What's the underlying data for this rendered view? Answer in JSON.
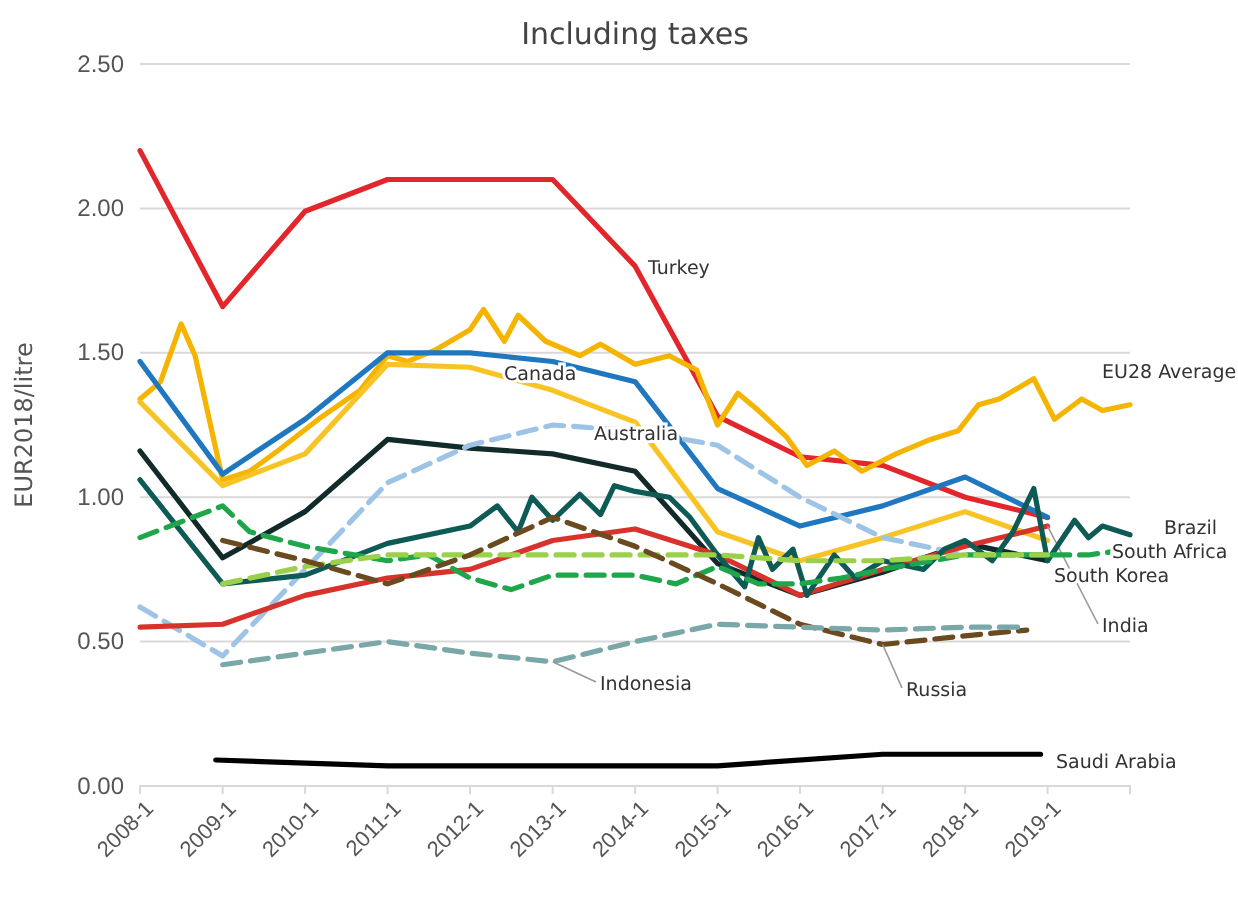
{
  "chart_data": {
    "type": "line",
    "title": "Including taxes",
    "ylabel": "EUR2018/litre",
    "xlim": [
      "2008-01",
      "2020-01"
    ],
    "xticks": [
      {
        "value": "2008-01",
        "label": "2008-1"
      },
      {
        "value": "2009-01",
        "label": "2009-1"
      },
      {
        "value": "2010-01",
        "label": "2010-1"
      },
      {
        "value": "2011-01",
        "label": "2011-1"
      },
      {
        "value": "2012-01",
        "label": "2012-1"
      },
      {
        "value": "2013-01",
        "label": "2013-1"
      },
      {
        "value": "2014-01",
        "label": "2014-1"
      },
      {
        "value": "2015-01",
        "label": "2015-1"
      },
      {
        "value": "2016-01",
        "label": "2016-1"
      },
      {
        "value": "2017-01",
        "label": "2017-1"
      },
      {
        "value": "2018-01",
        "label": "2018-1"
      },
      {
        "value": "2019-01",
        "label": "2019-1"
      }
    ],
    "ylim": [
      0,
      2.5
    ],
    "yticks": [
      {
        "value": 0,
        "label": "0.00"
      },
      {
        "value": 0.5,
        "label": "0.50"
      },
      {
        "value": 1,
        "label": "1.00"
      },
      {
        "value": 1.5,
        "label": "1.50"
      },
      {
        "value": 2,
        "label": "2.00"
      },
      {
        "value": 2.5,
        "label": "2.50"
      }
    ],
    "grid": "y",
    "legend": false,
    "marker": "none",
    "series": [
      {
        "name": "Turkey",
        "color": "#e3262b",
        "line_style": "solid",
        "x": [
          "2008-01",
          "2009-01",
          "2010-01",
          "2011-01",
          "2013-01",
          "2014-01",
          "2015-01",
          "2016-01",
          "2017-01",
          "2018-01",
          "2019-01"
        ],
        "values": [
          2.2,
          1.66,
          1.99,
          2.1,
          2.1,
          1.8,
          1.28,
          1.14,
          1.11,
          1.0,
          0.93
        ]
      },
      {
        "name": "EU28 Average",
        "color": "#f5b400",
        "line_style": "solid",
        "x": [
          "2008-01",
          "2008-04",
          "2008-07",
          "2008-09",
          "2009-01",
          "2009-05",
          "2009-09",
          "2010-03",
          "2010-09",
          "2011-01",
          "2011-04",
          "2011-08",
          "2012-01",
          "2012-03",
          "2012-06",
          "2012-08",
          "2012-12",
          "2013-05",
          "2013-08",
          "2014-01",
          "2014-06",
          "2014-10",
          "2015-01",
          "2015-04",
          "2015-07",
          "2015-11",
          "2016-02",
          "2016-06",
          "2016-10",
          "2017-03",
          "2017-08",
          "2017-12",
          "2018-03",
          "2018-06",
          "2018-11",
          "2019-02",
          "2019-06",
          "2019-09",
          "2020-01"
        ],
        "values": [
          1.34,
          1.4,
          1.6,
          1.49,
          1.06,
          1.09,
          1.16,
          1.27,
          1.37,
          1.49,
          1.47,
          1.51,
          1.58,
          1.65,
          1.54,
          1.63,
          1.54,
          1.49,
          1.53,
          1.46,
          1.49,
          1.44,
          1.25,
          1.36,
          1.3,
          1.21,
          1.11,
          1.16,
          1.09,
          1.15,
          1.2,
          1.23,
          1.32,
          1.34,
          1.41,
          1.27,
          1.34,
          1.3,
          1.32
        ]
      },
      {
        "color": "#1f77c0",
        "line_style": "solid",
        "x": [
          "2008-01",
          "2009-01",
          "2010-01",
          "2011-01",
          "2012-01",
          "2013-01",
          "2014-01",
          "2015-01",
          "2016-01",
          "2017-01",
          "2018-01",
          "2019-01"
        ],
        "values": [
          1.47,
          1.08,
          1.27,
          1.5,
          1.5,
          1.47,
          1.4,
          1.03,
          0.9,
          0.97,
          1.07,
          0.93
        ]
      },
      {
        "name": "Canada",
        "color": "#f7c325",
        "line_style": "solid",
        "x": [
          "2008-01",
          "2009-01",
          "2010-01",
          "2011-01",
          "2012-01",
          "2013-01",
          "2014-01",
          "2015-01",
          "2016-01",
          "2017-01",
          "2018-01",
          "2019-01"
        ],
        "values": [
          1.33,
          1.04,
          1.15,
          1.46,
          1.45,
          1.37,
          1.26,
          0.88,
          0.78,
          0.86,
          0.95,
          0.85
        ]
      },
      {
        "name": "South Korea",
        "color": "#112a2a",
        "line_style": "solid",
        "x": [
          "2008-01",
          "2009-01",
          "2010-01",
          "2011-01",
          "2012-01",
          "2013-01",
          "2014-01",
          "2015-01",
          "2016-01",
          "2017-01",
          "2018-01",
          "2019-01"
        ],
        "values": [
          1.16,
          0.79,
          0.95,
          1.2,
          1.17,
          1.15,
          1.09,
          0.77,
          0.66,
          0.74,
          0.84,
          0.78
        ]
      },
      {
        "name": "Australia",
        "color": "#9dc3e6",
        "line_style": "dashed",
        "x": [
          "2008-01",
          "2009-01",
          "2010-01",
          "2011-01",
          "2012-01",
          "2013-01",
          "2014-01",
          "2015-01",
          "2016-01",
          "2017-01",
          "2018-01"
        ],
        "values": [
          0.62,
          0.45,
          0.75,
          1.05,
          1.18,
          1.25,
          1.23,
          1.18,
          1.0,
          0.86,
          0.8
        ]
      },
      {
        "name": "India",
        "color": "#d7322b",
        "line_style": "solid",
        "x": [
          "2008-01",
          "2009-01",
          "2010-01",
          "2011-01",
          "2012-01",
          "2013-01",
          "2014-01",
          "2015-01",
          "2016-01",
          "2017-01",
          "2018-01",
          "2019-01"
        ],
        "values": [
          0.55,
          0.56,
          0.66,
          0.72,
          0.75,
          0.85,
          0.89,
          0.8,
          0.66,
          0.75,
          0.83,
          0.9
        ]
      },
      {
        "name": "Brazil",
        "color": "#0e5a55",
        "line_style": "solid",
        "x": [
          "2008-01",
          "2009-01",
          "2010-01",
          "2011-01",
          "2012-01",
          "2012-05",
          "2012-08",
          "2012-10",
          "2013-01",
          "2013-05",
          "2013-08",
          "2013-10",
          "2014-01",
          "2014-06",
          "2014-09",
          "2015-01",
          "2015-05",
          "2015-07",
          "2015-09",
          "2015-12",
          "2016-02",
          "2016-06",
          "2016-09",
          "2017-01",
          "2017-07",
          "2017-10",
          "2018-01",
          "2018-05",
          "2018-08",
          "2018-11",
          "2019-01",
          "2019-05",
          "2019-07",
          "2019-09",
          "2020-01"
        ],
        "values": [
          1.06,
          0.7,
          0.73,
          0.84,
          0.9,
          0.97,
          0.88,
          1.0,
          0.92,
          1.01,
          0.94,
          1.04,
          1.02,
          1.0,
          0.93,
          0.8,
          0.69,
          0.86,
          0.75,
          0.82,
          0.66,
          0.8,
          0.72,
          0.78,
          0.75,
          0.82,
          0.85,
          0.78,
          0.88,
          1.03,
          0.78,
          0.92,
          0.86,
          0.9,
          0.87
        ]
      },
      {
        "name": "South Africa",
        "color": "#1fa64a",
        "line_style": "dashed",
        "x": [
          "2008-01",
          "2009-01",
          "2009-05",
          "2010-01",
          "2011-01",
          "2011-07",
          "2012-01",
          "2012-07",
          "2013-01",
          "2013-07",
          "2014-01",
          "2014-07",
          "2015-01",
          "2015-07",
          "2016-01",
          "2016-07",
          "2017-01",
          "2018-01",
          "2019-01",
          "2019-07",
          "2020-01"
        ],
        "values": [
          0.86,
          0.97,
          0.88,
          0.83,
          0.78,
          0.8,
          0.72,
          0.68,
          0.73,
          0.73,
          0.73,
          0.7,
          0.76,
          0.7,
          0.7,
          0.72,
          0.75,
          0.8,
          0.8,
          0.8,
          0.82
        ]
      },
      {
        "color": "#9bd04a",
        "line_style": "dashed",
        "x": [
          "2009-01",
          "2010-01",
          "2011-01",
          "2012-01",
          "2013-01",
          "2014-01",
          "2015-01",
          "2016-01",
          "2017-01",
          "2018-01",
          "2019-01"
        ],
        "values": [
          0.7,
          0.76,
          0.8,
          0.8,
          0.8,
          0.8,
          0.8,
          0.78,
          0.78,
          0.8,
          0.8
        ]
      },
      {
        "name": "Russia",
        "color": "#6b4a1f",
        "line_style": "dashed",
        "x": [
          "2009-01",
          "2010-01",
          "2011-01",
          "2012-01",
          "2013-01",
          "2014-01",
          "2015-01",
          "2016-01",
          "2017-01",
          "2018-01",
          "2018-10"
        ],
        "values": [
          0.85,
          0.78,
          0.7,
          0.8,
          0.93,
          0.83,
          0.7,
          0.56,
          0.49,
          0.52,
          0.54
        ]
      },
      {
        "name": "Indonesia",
        "color": "#7aa7a8",
        "line_style": "dashed",
        "x": [
          "2009-01",
          "2010-01",
          "2011-01",
          "2012-01",
          "2013-01",
          "2014-01",
          "2015-01",
          "2016-01",
          "2017-01",
          "2018-01",
          "2018-10"
        ],
        "values": [
          0.42,
          0.46,
          0.5,
          0.46,
          0.43,
          0.5,
          0.56,
          0.55,
          0.54,
          0.55,
          0.55
        ]
      },
      {
        "name": "Saudi Arabia",
        "color": "#000000",
        "line_style": "solid",
        "x": [
          "2008-12",
          "2011-01",
          "2015-01",
          "2017-01",
          "2018-12"
        ],
        "values": [
          0.09,
          0.07,
          0.07,
          0.11,
          0.11
        ]
      }
    ]
  }
}
